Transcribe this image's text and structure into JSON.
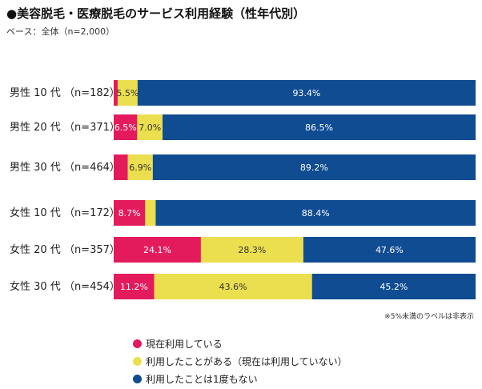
{
  "header": {
    "title": "●美容脱毛・医療脱毛のサービス利用経験（性年代別）",
    "base_note": "ベース：全体（n=2,000）"
  },
  "note": "※5%未満のラベルは非表示",
  "colors": {
    "current": "#e31b5d",
    "past": "#ebdf4f",
    "never": "#0f4c92",
    "label_on_dark": "#ffffff",
    "label_on_light": "#333333"
  },
  "chart_data": {
    "type": "bar",
    "orientation": "horizontal",
    "stacked": true,
    "categories": [
      "男性 10 代 （n=182）",
      "男性 20 代 （n=371）",
      "男性 30 代 （n=464）",
      "女性 10 代 （n=172）",
      "女性 20 代 （n=357）",
      "女性 30 代 （n=454）"
    ],
    "series": [
      {
        "name": "現在利用している",
        "values": [
          1.1,
          6.5,
          3.9,
          8.7,
          24.1,
          11.2
        ],
        "labels": [
          "",
          "6.5%",
          "",
          "8.7%",
          "24.1%",
          "11.2%"
        ]
      },
      {
        "name": "利用したことがある（現在は利用していない）",
        "values": [
          5.5,
          7.0,
          6.9,
          2.9,
          28.3,
          43.6
        ],
        "labels": [
          "5.5%",
          "7.0%",
          "6.9%",
          "",
          "28.3%",
          "43.6%"
        ]
      },
      {
        "name": "利用したことは1度もない",
        "values": [
          93.4,
          86.5,
          89.2,
          88.4,
          47.6,
          45.2
        ],
        "labels": [
          "93.4%",
          "86.5%",
          "89.2%",
          "88.4%",
          "47.6%",
          "45.2%"
        ]
      }
    ],
    "xlim": [
      0,
      100
    ],
    "grid": false,
    "legend_position": "bottom"
  }
}
